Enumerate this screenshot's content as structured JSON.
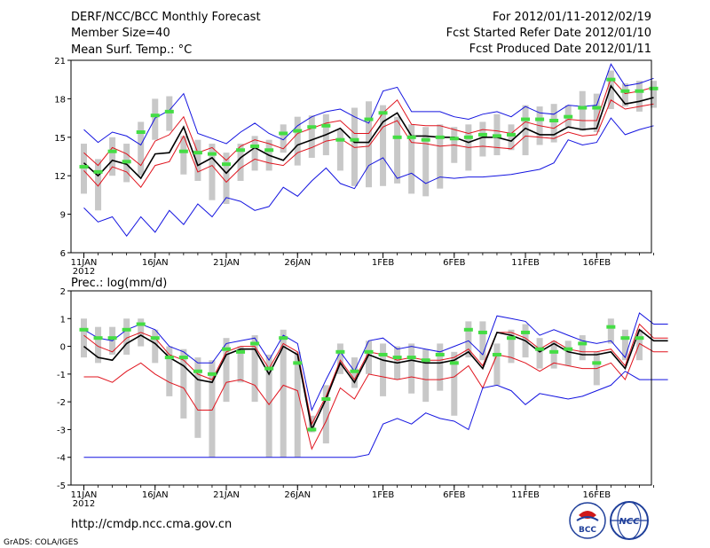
{
  "header": {
    "title": "DERF/NCC/BCC Monthly Forecast",
    "member_size": "Member Size=40",
    "period": "For 2012/01/11-2012/02/19",
    "started": "Fcst Started Refer Date 2012/01/10",
    "produced": "Fcst Produced Date 2012/01/11"
  },
  "footer": {
    "url": "http://cmdp.ncc.cma.gov.cn",
    "credit": "GrADS: COLA/IGES",
    "logo_bcc_text": "BCC",
    "logo_ncc_text": "NCC"
  },
  "colors": {
    "ensemble_mean": "#000000",
    "observed": "#e0141e",
    "envelope": "#1414e0",
    "ens_median": "#44dd44",
    "spread_bar": "#c8c8c8"
  },
  "chart_data": [
    {
      "type": "line",
      "title": "Mean Surf. Temp.: °C",
      "ylim": [
        6,
        21
      ],
      "yticks": [
        6,
        9,
        12,
        15,
        18,
        21
      ],
      "xticks": [
        "11JAN",
        "16JAN",
        "21JAN",
        "26JAN",
        "1FEB",
        "6FEB",
        "11FEB",
        "16FEB"
      ],
      "xtick_sublabel": "2012",
      "x_day_offsets": [
        0,
        5,
        10,
        15,
        21,
        26,
        31,
        36
      ],
      "n_days": 40,
      "series": [
        {
          "name": "ensemble max",
          "role": "max",
          "values": [
            15.6,
            14.6,
            15.4,
            15.1,
            14.4,
            16.5,
            17.1,
            18.4,
            15.3,
            14.9,
            14.5,
            15.4,
            16.1,
            15.3,
            14.8,
            15.9,
            16.6,
            17.0,
            17.2,
            16.6,
            16.1,
            18.6,
            18.9,
            17.0,
            17.0,
            17.0,
            16.6,
            16.4,
            16.8,
            17.0,
            16.6,
            17.4,
            16.9,
            16.8,
            17.5,
            17.4,
            17.5,
            20.7,
            19.0,
            19.2,
            19.6
          ]
        },
        {
          "name": "upper red",
          "role": "upper",
          "values": [
            13.8,
            12.8,
            14.2,
            13.7,
            12.8,
            14.7,
            15.2,
            16.6,
            13.8,
            14.2,
            13.2,
            14.3,
            14.8,
            14.5,
            14.1,
            15.3,
            15.7,
            16.1,
            16.3,
            15.3,
            15.3,
            16.9,
            17.9,
            16.0,
            15.9,
            15.9,
            15.6,
            15.3,
            15.6,
            15.5,
            15.3,
            16.2,
            15.9,
            15.7,
            16.4,
            16.3,
            16.3,
            19.6,
            18.4,
            18.6,
            18.9
          ]
        },
        {
          "name": "ensemble mean",
          "role": "mean",
          "values": [
            13.0,
            12.0,
            13.2,
            12.9,
            11.8,
            13.7,
            13.8,
            15.8,
            12.8,
            13.4,
            12.2,
            13.4,
            14.2,
            13.6,
            13.2,
            14.4,
            14.8,
            15.2,
            15.7,
            14.6,
            14.6,
            16.2,
            16.9,
            15.1,
            15.1,
            15.0,
            15.0,
            14.6,
            15.0,
            15.0,
            14.7,
            15.7,
            15.2,
            15.2,
            15.8,
            15.6,
            15.7,
            19.0,
            17.6,
            17.8,
            18.1
          ]
        },
        {
          "name": "lower red",
          "role": "lower",
          "values": [
            12.4,
            11.2,
            12.7,
            12.3,
            11.1,
            12.8,
            13.1,
            15.1,
            12.3,
            12.8,
            11.5,
            12.6,
            13.3,
            13.0,
            12.8,
            13.8,
            14.2,
            14.7,
            14.9,
            14.2,
            14.3,
            15.8,
            16.3,
            14.6,
            14.5,
            14.3,
            14.4,
            14.2,
            14.3,
            14.2,
            14.1,
            15.1,
            15.0,
            14.9,
            15.4,
            15.1,
            15.2,
            17.9,
            17.2,
            17.4,
            17.6
          ]
        },
        {
          "name": "ensemble min",
          "role": "min",
          "values": [
            9.5,
            8.4,
            8.8,
            7.3,
            8.8,
            7.6,
            9.3,
            8.2,
            9.8,
            8.8,
            10.3,
            10.0,
            9.3,
            9.6,
            11.1,
            10.4,
            11.6,
            12.6,
            11.4,
            11.0,
            12.8,
            13.4,
            11.8,
            12.2,
            11.4,
            11.9,
            11.8,
            11.9,
            11.9,
            12.0,
            12.1,
            12.3,
            12.5,
            13.0,
            14.8,
            14.4,
            14.6,
            16.5,
            15.2,
            15.6,
            15.9
          ]
        },
        {
          "name": "ensemble median",
          "role": "median",
          "values": [
            12.7,
            12.3,
            13.9,
            13.1,
            15.4,
            16.7,
            17.0,
            13.9,
            13.8,
            13.7,
            12.9,
            14.0,
            14.3,
            14.0,
            15.3,
            15.5,
            15.8,
            15.9,
            14.8,
            14.8,
            16.4,
            16.9,
            15.0,
            15.0,
            14.8,
            15.0,
            14.9,
            15.0,
            15.2,
            15.1,
            15.2,
            16.4,
            16.4,
            16.3,
            16.6,
            17.3,
            17.3,
            19.5,
            18.6,
            18.6,
            18.8
          ]
        }
      ],
      "spread_bars": {
        "low": [
          10.6,
          9.3,
          12.0,
          11.5,
          12.0,
          14.8,
          15.5,
          12.1,
          11.6,
          10.1,
          9.8,
          11.6,
          12.4,
          12.4,
          13.8,
          12.8,
          13.4,
          13.6,
          12.4,
          11.2,
          11.1,
          11.2,
          11.4,
          10.6,
          10.4,
          11.0,
          13.0,
          12.4,
          13.5,
          13.6,
          14.0,
          13.6,
          14.4,
          14.6,
          15.8,
          15.5,
          15.4,
          17.2,
          17.4,
          17.0,
          17.3
        ],
        "high": [
          14.5,
          13.3,
          15.0,
          14.5,
          16.2,
          18.0,
          18.2,
          15.1,
          14.8,
          14.5,
          13.8,
          14.5,
          15.1,
          14.8,
          16.0,
          16.6,
          16.7,
          16.8,
          15.6,
          17.3,
          17.8,
          17.5,
          16.6,
          16.0,
          15.8,
          16.0,
          15.8,
          16.0,
          16.2,
          16.8,
          16.0,
          17.5,
          17.4,
          17.6,
          17.5,
          18.6,
          18.4,
          20.2,
          19.2,
          19.4,
          19.4
        ]
      }
    },
    {
      "type": "line",
      "title": "Prec.: log(mm/d)",
      "ylim": [
        -5,
        2
      ],
      "yticks": [
        -5,
        -4,
        -3,
        -2,
        -1,
        0,
        1,
        2
      ],
      "xticks": [
        "11JAN",
        "16JAN",
        "21JAN",
        "26JAN",
        "1FEB",
        "6FEB",
        "11FEB",
        "16FEB"
      ],
      "xtick_sublabel": "2012",
      "x_day_offsets": [
        0,
        5,
        10,
        15,
        21,
        26,
        31,
        36
      ],
      "n_days": 40,
      "series": [
        {
          "name": "ensemble max",
          "role": "max",
          "values": [
            0.6,
            0.3,
            0.2,
            0.6,
            0.8,
            0.6,
            0.0,
            -0.2,
            -0.6,
            -0.6,
            0.1,
            0.2,
            0.3,
            -0.5,
            0.4,
            0.1,
            -2.3,
            -1.2,
            -0.2,
            -0.9,
            0.2,
            0.3,
            -0.1,
            0.0,
            -0.1,
            -0.2,
            0.0,
            0.2,
            -0.3,
            1.1,
            1.0,
            0.9,
            0.4,
            0.6,
            0.4,
            0.2,
            0.1,
            0.2,
            -0.4,
            1.2,
            0.8,
            0.8
          ]
        },
        {
          "name": "upper red",
          "role": "upper",
          "values": [
            0.4,
            0.0,
            -0.2,
            0.3,
            0.5,
            0.3,
            -0.3,
            -0.5,
            -1.0,
            -1.2,
            -0.2,
            0.0,
            0.0,
            -0.8,
            0.1,
            -0.2,
            -2.8,
            -1.8,
            -0.5,
            -1.2,
            -0.2,
            -0.3,
            -0.5,
            -0.4,
            -0.5,
            -0.5,
            -0.4,
            -0.1,
            -0.7,
            0.5,
            0.5,
            0.3,
            -0.1,
            0.2,
            -0.1,
            -0.2,
            -0.2,
            -0.1,
            -0.7,
            0.8,
            0.3,
            0.3
          ]
        },
        {
          "name": "ensemble mean",
          "role": "mean",
          "values": [
            0.0,
            -0.4,
            -0.5,
            0.1,
            0.4,
            0.1,
            -0.4,
            -0.7,
            -1.2,
            -1.3,
            -0.3,
            -0.1,
            -0.1,
            -1.0,
            0.0,
            -0.3,
            -3.0,
            -1.9,
            -0.6,
            -1.3,
            -0.3,
            -0.5,
            -0.6,
            -0.5,
            -0.6,
            -0.6,
            -0.5,
            -0.2,
            -0.8,
            0.5,
            0.4,
            0.2,
            -0.2,
            0.1,
            -0.2,
            -0.3,
            -0.3,
            -0.2,
            -0.8,
            0.6,
            0.2,
            0.2
          ]
        },
        {
          "name": "lower red",
          "role": "lower",
          "values": [
            -1.1,
            -1.1,
            -1.3,
            -0.9,
            -0.6,
            -1.0,
            -1.3,
            -1.5,
            -2.3,
            -2.3,
            -1.3,
            -1.2,
            -1.4,
            -2.1,
            -1.4,
            -1.6,
            -3.7,
            -2.7,
            -1.5,
            -1.9,
            -1.0,
            -1.1,
            -1.2,
            -1.1,
            -1.2,
            -1.2,
            -1.1,
            -0.7,
            -1.5,
            -0.3,
            -0.4,
            -0.6,
            -0.9,
            -0.6,
            -0.7,
            -0.8,
            -0.8,
            -0.6,
            -1.2,
            0.1,
            -0.2,
            -0.2
          ]
        },
        {
          "name": "ensemble min",
          "role": "min",
          "values": [
            -4.0,
            -4.0,
            -4.0,
            -4.0,
            -4.0,
            -4.0,
            -4.0,
            -4.0,
            -4.0,
            -4.0,
            -4.0,
            -4.0,
            -4.0,
            -4.0,
            -4.0,
            -4.0,
            -4.0,
            -4.0,
            -4.0,
            -4.0,
            -3.9,
            -2.8,
            -2.6,
            -2.8,
            -2.4,
            -2.6,
            -2.7,
            -3.0,
            -1.5,
            -1.4,
            -1.6,
            -2.1,
            -1.7,
            -1.8,
            -1.9,
            -1.8,
            -1.6,
            -1.4,
            -0.9,
            -1.2,
            -1.2,
            -1.2
          ]
        },
        {
          "name": "ensemble median",
          "role": "median",
          "values": [
            0.6,
            0.3,
            0.3,
            0.6,
            0.8,
            0.3,
            -0.4,
            -0.4,
            -0.9,
            -1.0,
            -0.1,
            -0.2,
            0.1,
            -0.8,
            0.3,
            -0.6,
            -3.0,
            -1.9,
            -0.2,
            -0.9,
            -0.2,
            -0.3,
            -0.4,
            -0.4,
            -0.5,
            -0.3,
            -0.6,
            0.6,
            0.5,
            -0.3,
            0.3,
            0.5,
            -0.1,
            -0.2,
            -0.1,
            0.1,
            -0.6,
            0.7,
            0.3,
            0.3
          ]
        }
      ],
      "spread_bars": {
        "low": [
          -0.4,
          -0.6,
          -0.3,
          -0.3,
          0.0,
          -0.6,
          -1.8,
          -2.6,
          -3.3,
          -4.0,
          -2.0,
          -1.3,
          -2.0,
          -4.0,
          -4.0,
          -4.0,
          -3.1,
          -3.5,
          -1.0,
          -1.5,
          -1.0,
          -1.8,
          -1.2,
          -1.7,
          -2.0,
          -1.6,
          -2.5,
          -0.4,
          -0.5,
          -1.4,
          -0.6,
          -0.4,
          -0.8,
          -0.8,
          -0.7,
          -0.5,
          -1.4,
          0.1,
          -0.5,
          -0.5
        ],
        "high": [
          1.0,
          0.7,
          0.7,
          1.0,
          1.0,
          0.6,
          0.0,
          -0.1,
          -0.4,
          -0.5,
          0.3,
          0.0,
          0.4,
          -0.3,
          0.6,
          -0.2,
          -2.5,
          -1.4,
          0.1,
          -0.4,
          0.2,
          0.1,
          0.0,
          0.1,
          -0.1,
          0.1,
          -0.2,
          0.9,
          0.9,
          0.1,
          0.6,
          0.8,
          0.3,
          0.2,
          0.2,
          0.4,
          -0.2,
          1.0,
          0.6,
          0.6
        ]
      }
    }
  ]
}
